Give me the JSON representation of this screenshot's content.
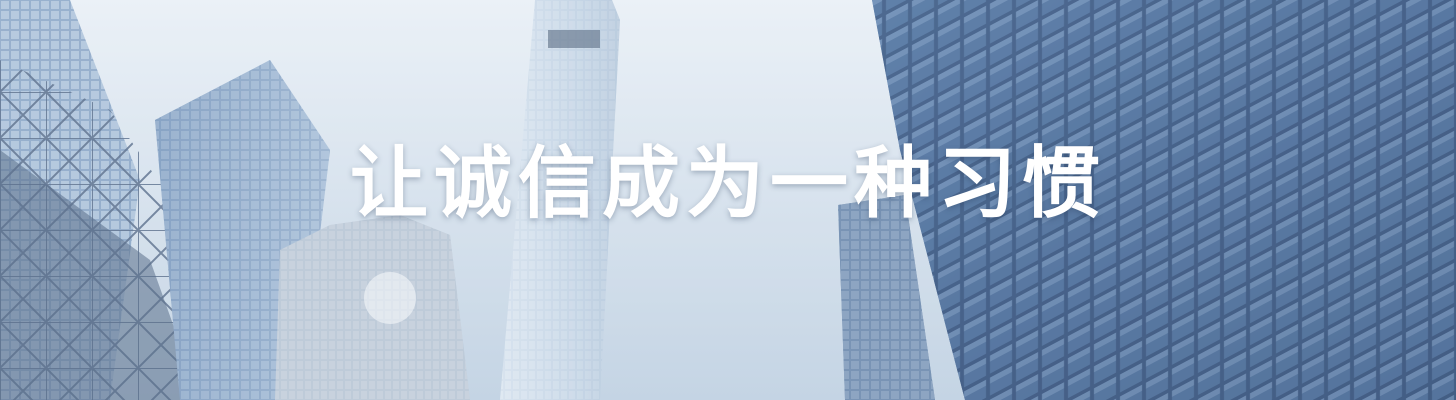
{
  "banner": {
    "headline": "让诚信成为一种习惯",
    "background": "low-angle-skyscrapers-photo"
  },
  "colors": {
    "sky_top": "#e6edf4",
    "sky_bottom": "#b9cadc",
    "glass_dark": "#1e3a66",
    "glass_mid": "#4a6f9c",
    "glass_light": "#9fb8d3",
    "headline": "#ffffff"
  }
}
